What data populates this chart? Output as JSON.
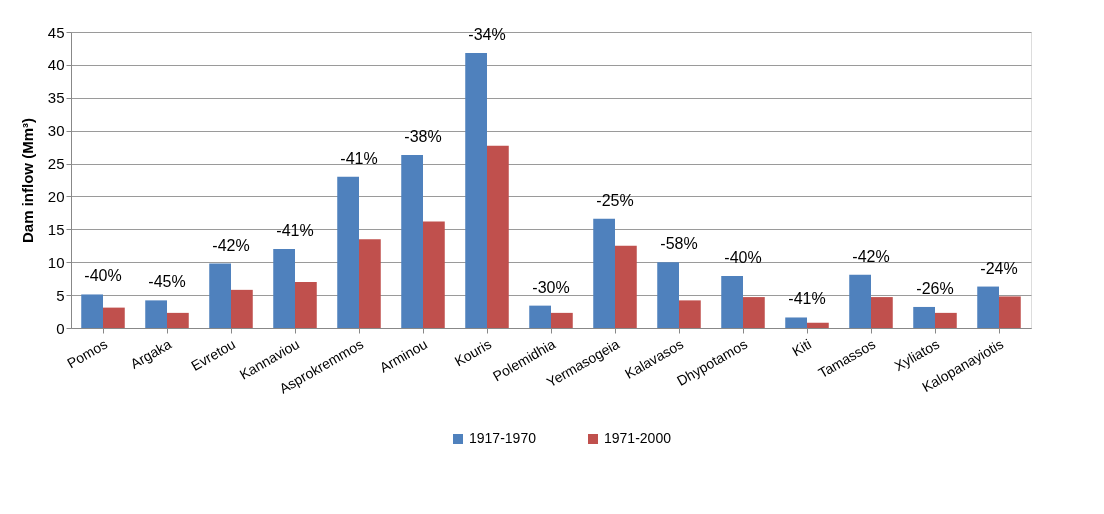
{
  "chart_data": {
    "type": "bar",
    "ylabel": "Dam inflow (Mm³)",
    "categories": [
      "Pomos",
      "Argaka",
      "Evretou",
      "Kannaviou",
      "Asprokremmos",
      "Arminou",
      "Kouris",
      "Polemidhia",
      "Yermasogeia",
      "Kalavasos",
      "Dhypotamos",
      "Kiti",
      "Tamassos",
      "Xyliatos",
      "Kalopanayiotis"
    ],
    "series": [
      {
        "name": "1917-1970",
        "color": "#4f81bd",
        "values": [
          5.1,
          4.2,
          9.8,
          12.0,
          23.0,
          26.3,
          41.8,
          3.4,
          16.6,
          10.0,
          7.9,
          1.6,
          8.1,
          3.2,
          6.3
        ]
      },
      {
        "name": "1971-2000",
        "color": "#c0504d",
        "values": [
          3.1,
          2.3,
          5.8,
          7.0,
          13.5,
          16.2,
          27.7,
          2.3,
          12.5,
          4.2,
          4.7,
          0.8,
          4.7,
          2.3,
          4.8
        ]
      }
    ],
    "annotations": [
      {
        "text": "-40%",
        "x": "Pomos",
        "y": 5.1
      },
      {
        "text": "-45%",
        "x": "Argaka",
        "y": 4.2
      },
      {
        "text": "-42%",
        "x": "Evretou",
        "y": 9.8
      },
      {
        "text": "-41%",
        "x": "Kannaviou",
        "y": 12.0
      },
      {
        "text": "-41%",
        "x": "Asprokremmos",
        "y": 23.0
      },
      {
        "text": "-38%",
        "x": "Arminou",
        "y": 26.3
      },
      {
        "text": "-34%",
        "x": "Kouris",
        "y": 41.8
      },
      {
        "text": "-30%",
        "x": "Polemidhia",
        "y": 3.4
      },
      {
        "text": "-25%",
        "x": "Yermasogeia",
        "y": 16.6
      },
      {
        "text": "-58%",
        "x": "Kalavasos",
        "y": 10.0
      },
      {
        "text": "-40%",
        "x": "Dhypotamos",
        "y": 7.9
      },
      {
        "text": "-41%",
        "x": "Kiti",
        "y": 1.6
      },
      {
        "text": "-42%",
        "x": "Tamassos",
        "y": 8.1
      },
      {
        "text": "-26%",
        "x": "Xyliatos",
        "y": 3.2
      },
      {
        "text": "-24%",
        "x": "Kalopanayiotis",
        "y": 6.3
      }
    ],
    "ylim": [
      0,
      45
    ],
    "yticks": [
      0,
      5,
      10,
      15,
      20,
      25,
      30,
      35,
      40,
      45
    ],
    "grid": "y",
    "legend": "bottom"
  }
}
